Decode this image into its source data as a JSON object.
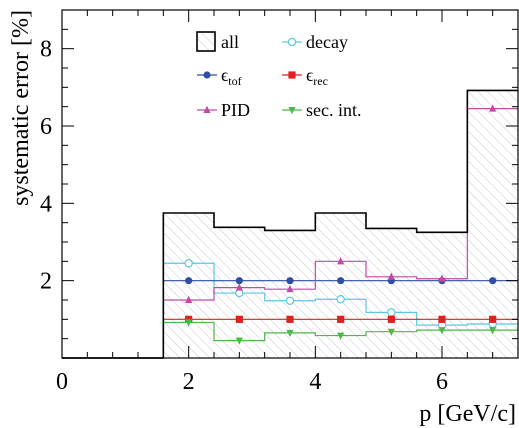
{
  "chart_data": {
    "type": "histogram-step",
    "xlabel": "p [GeV/c]",
    "ylabel": "systematic error [%]",
    "xlim": [
      0,
      7.2
    ],
    "ylim": [
      0,
      9
    ],
    "xticks": [
      0,
      2,
      4,
      6
    ],
    "yticks": [
      2,
      4,
      6,
      8
    ],
    "bin_edges": [
      0,
      1.6,
      2.4,
      3.2,
      4.0,
      4.8,
      5.6,
      6.4,
      7.2
    ],
    "series": [
      {
        "key": "all",
        "name": "all",
        "color": "#000000",
        "style": "filled-hatched-step",
        "values": [
          0,
          3.75,
          3.38,
          3.3,
          3.75,
          3.35,
          3.25,
          6.92
        ]
      },
      {
        "key": "decay",
        "name": "decay",
        "color": "#5bc8e0",
        "marker": "open-circle",
        "values": [
          0,
          2.45,
          1.68,
          1.48,
          1.52,
          1.18,
          0.85,
          0.88
        ]
      },
      {
        "key": "eps_tof",
        "name": "ϵ",
        "name_sub": "tof",
        "color": "#2e4fa3",
        "marker": "filled-circle",
        "values": [
          0,
          2.0,
          2.0,
          2.0,
          2.0,
          2.0,
          2.0,
          2.0
        ]
      },
      {
        "key": "eps_rec",
        "name": "ϵ",
        "name_sub": "rec",
        "color": "#e02020",
        "marker": "filled-square",
        "values": [
          0,
          1.0,
          1.0,
          1.0,
          1.0,
          1.0,
          1.0,
          1.0
        ]
      },
      {
        "key": "pid",
        "name": "PID",
        "color": "#c04aa8",
        "marker": "filled-triangle-up",
        "values": [
          0,
          1.5,
          1.82,
          1.78,
          2.5,
          2.1,
          2.05,
          6.45
        ]
      },
      {
        "key": "secint",
        "name": "sec. int.",
        "color": "#4db848",
        "marker": "filled-triangle-down",
        "values": [
          0,
          0.92,
          0.45,
          0.65,
          0.58,
          0.68,
          0.72,
          0.72
        ]
      }
    ],
    "legend_position": "top-center",
    "grid": false
  }
}
